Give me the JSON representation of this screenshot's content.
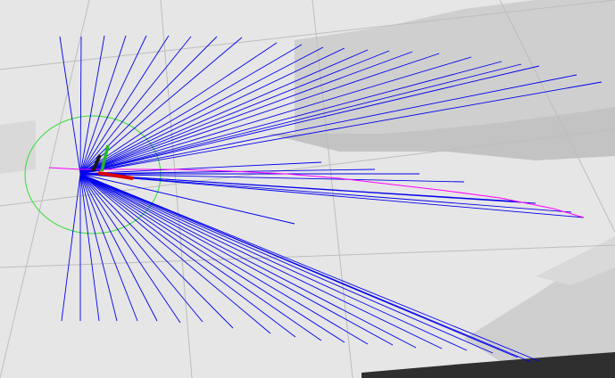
{
  "view": {
    "type": "3d-visualization",
    "background": "#e6e6e6"
  },
  "colors": {
    "grid": "#bdbdbd",
    "map_light": "#d9d9d9",
    "map_mid": "#cfcfcf",
    "map_dark": "#c3c3c3",
    "obstacle": "#2f2f2f",
    "laser_rays": "#0000ee",
    "laser_scan": "#ff00ff",
    "footprint": "#33dd33",
    "axis_x": "#dd0000",
    "axis_y": "#22bb22",
    "axis_z": "#1a1a1a"
  },
  "icons": [
    "robot-origin-axes-icon",
    "robot-footprint-circle-icon"
  ]
}
